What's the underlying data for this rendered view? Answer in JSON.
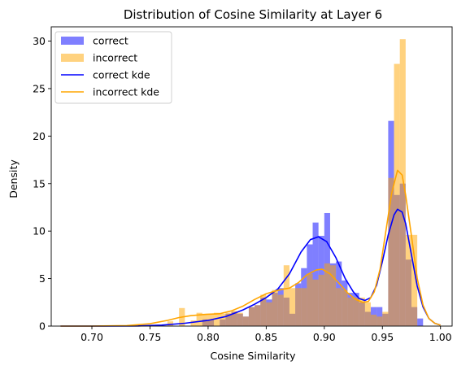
{
  "chart_data": {
    "type": "histogram",
    "title": "Distribution of Cosine Similarity at Layer 6",
    "xlabel": "Cosine Similarity",
    "ylabel": "Density",
    "xlim": [
      0.665,
      1.01
    ],
    "ylim": [
      0,
      31.5
    ],
    "xticks": [
      "0.70",
      "0.75",
      "0.80",
      "0.85",
      "0.90",
      "0.95",
      "1.00"
    ],
    "yticks": [
      "0",
      "5",
      "10",
      "15",
      "20",
      "25",
      "30"
    ],
    "legend_position": "upper-left",
    "grid": false,
    "bin_width": 0.005,
    "series": [
      {
        "name": "correct",
        "kind": "bar",
        "color": "#0000ff",
        "alpha": 0.5,
        "bins": [
          [
            0.795,
            0.7
          ],
          [
            0.8,
            0.7
          ],
          [
            0.805,
            0.0
          ],
          [
            0.81,
            0.7
          ],
          [
            0.815,
            1.3
          ],
          [
            0.82,
            1.5
          ],
          [
            0.825,
            1.3
          ],
          [
            0.83,
            1.0
          ],
          [
            0.835,
            2.0
          ],
          [
            0.84,
            2.2
          ],
          [
            0.845,
            3.0
          ],
          [
            0.85,
            2.8
          ],
          [
            0.855,
            3.5
          ],
          [
            0.86,
            4.0
          ],
          [
            0.865,
            3.0
          ],
          [
            0.87,
            1.3
          ],
          [
            0.875,
            4.5
          ],
          [
            0.88,
            6.1
          ],
          [
            0.885,
            8.6
          ],
          [
            0.89,
            10.9
          ],
          [
            0.895,
            9.5
          ],
          [
            0.9,
            11.9
          ],
          [
            0.905,
            6.6
          ],
          [
            0.91,
            6.8
          ],
          [
            0.915,
            4.8
          ],
          [
            0.92,
            3.5
          ],
          [
            0.925,
            3.5
          ],
          [
            0.93,
            2.5
          ],
          [
            0.935,
            1.5
          ],
          [
            0.94,
            2.0
          ],
          [
            0.945,
            2.0
          ],
          [
            0.95,
            1.3
          ],
          [
            0.955,
            21.6
          ],
          [
            0.96,
            13.8
          ],
          [
            0.965,
            15.0
          ],
          [
            0.97,
            7.0
          ],
          [
            0.975,
            2.0
          ],
          [
            0.98,
            0.8
          ]
        ]
      },
      {
        "name": "incorrect",
        "kind": "bar",
        "color": "#ffa500",
        "alpha": 0.5,
        "bins": [
          [
            0.765,
            0.5
          ],
          [
            0.775,
            1.9
          ],
          [
            0.785,
            0.6
          ],
          [
            0.79,
            1.4
          ],
          [
            0.795,
            1.3
          ],
          [
            0.8,
            1.3
          ],
          [
            0.805,
            1.4
          ],
          [
            0.81,
            1.3
          ],
          [
            0.815,
            1.4
          ],
          [
            0.82,
            1.6
          ],
          [
            0.825,
            1.4
          ],
          [
            0.83,
            1.0
          ],
          [
            0.835,
            2.0
          ],
          [
            0.84,
            2.2
          ],
          [
            0.845,
            3.3
          ],
          [
            0.85,
            2.5
          ],
          [
            0.855,
            3.8
          ],
          [
            0.86,
            3.3
          ],
          [
            0.865,
            6.4
          ],
          [
            0.87,
            4.0
          ],
          [
            0.875,
            4.0
          ],
          [
            0.88,
            4.0
          ],
          [
            0.885,
            5.5
          ],
          [
            0.89,
            4.9
          ],
          [
            0.895,
            5.4
          ],
          [
            0.9,
            6.6
          ],
          [
            0.905,
            6.4
          ],
          [
            0.91,
            4.0
          ],
          [
            0.915,
            3.8
          ],
          [
            0.92,
            3.0
          ],
          [
            0.925,
            3.0
          ],
          [
            0.93,
            3.0
          ],
          [
            0.935,
            2.5
          ],
          [
            0.94,
            1.2
          ],
          [
            0.945,
            1.0
          ],
          [
            0.95,
            1.5
          ],
          [
            0.955,
            15.6
          ],
          [
            0.96,
            27.6
          ],
          [
            0.965,
            30.2
          ],
          [
            0.97,
            9.6
          ],
          [
            0.975,
            9.6
          ]
        ]
      },
      {
        "name": "correct kde",
        "kind": "line",
        "color": "#0000ff",
        "points": [
          [
            0.673,
            0.0
          ],
          [
            0.7,
            0.0
          ],
          [
            0.74,
            0.02
          ],
          [
            0.76,
            0.1
          ],
          [
            0.78,
            0.3
          ],
          [
            0.8,
            0.6
          ],
          [
            0.815,
            1.0
          ],
          [
            0.83,
            1.7
          ],
          [
            0.84,
            2.3
          ],
          [
            0.85,
            3.0
          ],
          [
            0.86,
            3.9
          ],
          [
            0.87,
            5.5
          ],
          [
            0.88,
            7.8
          ],
          [
            0.888,
            9.1
          ],
          [
            0.895,
            9.4
          ],
          [
            0.902,
            8.9
          ],
          [
            0.91,
            7.2
          ],
          [
            0.918,
            5.0
          ],
          [
            0.925,
            3.6
          ],
          [
            0.93,
            2.9
          ],
          [
            0.935,
            2.7
          ],
          [
            0.94,
            3.0
          ],
          [
            0.945,
            4.3
          ],
          [
            0.95,
            6.8
          ],
          [
            0.955,
            9.6
          ],
          [
            0.96,
            11.7
          ],
          [
            0.963,
            12.3
          ],
          [
            0.967,
            12.0
          ],
          [
            0.97,
            10.8
          ],
          [
            0.975,
            7.5
          ],
          [
            0.98,
            4.2
          ],
          [
            0.985,
            2.0
          ],
          [
            0.99,
            0.8
          ],
          [
            0.995,
            0.3
          ],
          [
            1.0,
            0.1
          ]
        ]
      },
      {
        "name": "incorrect kde",
        "kind": "line",
        "color": "#ffa500",
        "points": [
          [
            0.673,
            0.0
          ],
          [
            0.7,
            0.0
          ],
          [
            0.73,
            0.05
          ],
          [
            0.75,
            0.25
          ],
          [
            0.765,
            0.6
          ],
          [
            0.775,
            0.9
          ],
          [
            0.785,
            1.1
          ],
          [
            0.8,
            1.25
          ],
          [
            0.81,
            1.3
          ],
          [
            0.82,
            1.6
          ],
          [
            0.83,
            2.1
          ],
          [
            0.84,
            2.8
          ],
          [
            0.85,
            3.4
          ],
          [
            0.858,
            3.7
          ],
          [
            0.865,
            3.9
          ],
          [
            0.87,
            4.0
          ],
          [
            0.878,
            4.6
          ],
          [
            0.885,
            5.4
          ],
          [
            0.893,
            5.9
          ],
          [
            0.898,
            6.0
          ],
          [
            0.905,
            5.5
          ],
          [
            0.912,
            4.6
          ],
          [
            0.92,
            3.5
          ],
          [
            0.927,
            2.8
          ],
          [
            0.933,
            2.5
          ],
          [
            0.938,
            2.6
          ],
          [
            0.943,
            3.6
          ],
          [
            0.948,
            6.0
          ],
          [
            0.953,
            10.0
          ],
          [
            0.958,
            14.0
          ],
          [
            0.963,
            16.4
          ],
          [
            0.967,
            15.9
          ],
          [
            0.97,
            13.8
          ],
          [
            0.975,
            9.5
          ],
          [
            0.98,
            5.0
          ],
          [
            0.985,
            2.2
          ],
          [
            0.99,
            0.8
          ],
          [
            0.995,
            0.3
          ],
          [
            1.0,
            0.1
          ]
        ]
      }
    ]
  }
}
